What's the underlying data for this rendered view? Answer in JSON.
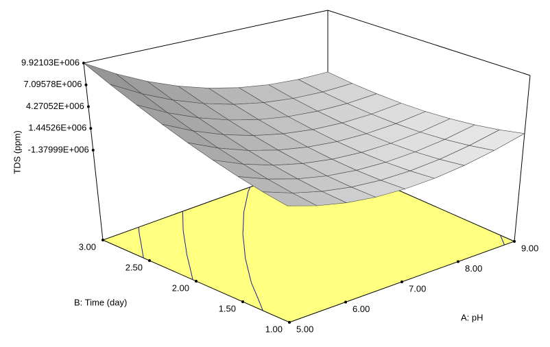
{
  "chart_data": {
    "type": "surface",
    "x_label": "A: pH",
    "y_label": "B: Time (day)",
    "z_label": "TDS (ppm)",
    "x": [
      5,
      5.5,
      6,
      6.5,
      7,
      7.5,
      8,
      8.5,
      9
    ],
    "y": [
      1,
      1.25,
      1.5,
      1.75,
      2,
      2.25,
      2.5,
      2.75,
      3
    ],
    "z": [
      [
        730000,
        -220000,
        -858000,
        -1183000,
        -1195000,
        -896000,
        -283000,
        643000,
        1880000
      ],
      [
        1341000,
        223000,
        -581000,
        -1073000,
        -1252000,
        -1119000,
        -674000,
        85000,
        1156000
      ],
      [
        2105000,
        821000,
        -150000,
        -809000,
        -1155000,
        -1189000,
        -910000,
        -319000,
        585000
      ],
      [
        3024000,
        1572000,
        435000,
        -391000,
        -904000,
        -1105000,
        -993000,
        -568000,
        169000
      ],
      [
        4095000,
        2477000,
        1173000,
        180000,
        -500000,
        -868000,
        -923000,
        -665000,
        -95000
      ],
      [
        5321000,
        3536000,
        2065000,
        905000,
        58000,
        -477000,
        -699000,
        -608000,
        -205000
      ],
      [
        6700000,
        4748000,
        3110000,
        1784000,
        770000,
        68000,
        -320000,
        -396000,
        -160000
      ],
      [
        8234000,
        6115000,
        4310000,
        2817000,
        1636000,
        767000,
        213000,
        -31000,
        39000
      ],
      [
        9921030,
        7635000,
        5663000,
        4003000,
        2655000,
        1620000,
        898000,
        488000,
        390000
      ]
    ],
    "xlim": [
      5,
      9
    ],
    "ylim": [
      1,
      3
    ],
    "zlim": [
      -13050000,
      9921030
    ],
    "xticks": [
      {
        "value": 5,
        "label": "5.00"
      },
      {
        "value": 6,
        "label": "6.00"
      },
      {
        "value": 7,
        "label": "7.00"
      },
      {
        "value": 8,
        "label": "8.00"
      },
      {
        "value": 9,
        "label": "9.00"
      }
    ],
    "yticks": [
      {
        "value": 1,
        "label": "1.00"
      },
      {
        "value": 1.5,
        "label": "1.50"
      },
      {
        "value": 2,
        "label": "2.00"
      },
      {
        "value": 2.5,
        "label": "2.50"
      },
      {
        "value": 3,
        "label": "3.00"
      }
    ],
    "zticks": [
      {
        "value": 9921030,
        "label": "9.92103E+006"
      },
      {
        "value": 7095780,
        "label": "7.09578E+006"
      },
      {
        "value": 4270520,
        "label": "4.27052E+006"
      },
      {
        "value": 1445260,
        "label": "1.44526E+006"
      },
      {
        "value": -1379990,
        "label": "-1.37999E+006"
      }
    ],
    "surface_color": "#dcdcdc",
    "floor_color": "#ffff80",
    "contour_color": "#1a1aa0"
  }
}
